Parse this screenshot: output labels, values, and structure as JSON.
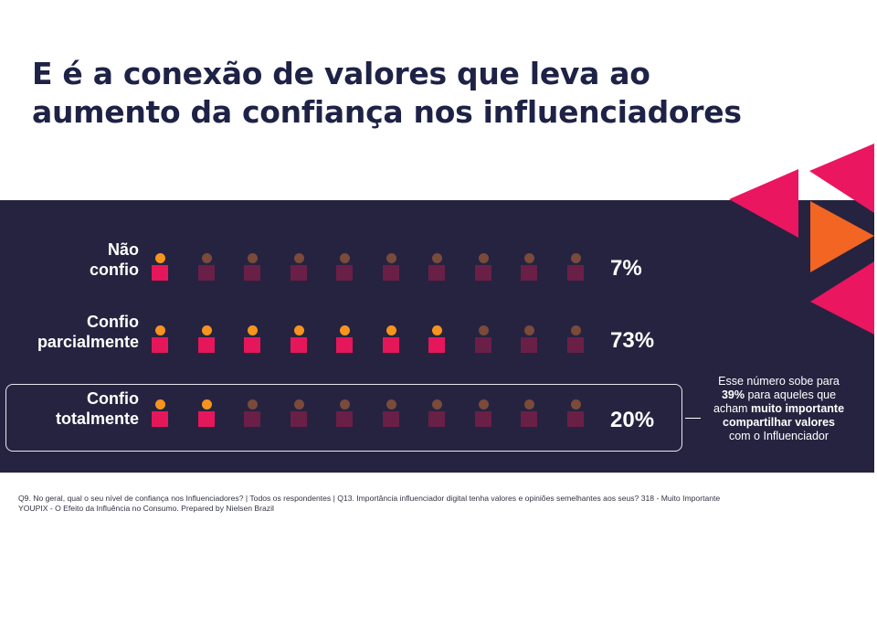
{
  "title": {
    "line1": "E é a conexão de valores que leva ao",
    "line2": "aumento da confiança nos influenciadores"
  },
  "chart_data": {
    "type": "pictograph",
    "icons_per_row": 10,
    "rows": [
      {
        "label_line1": "Não",
        "label_line2": "confio",
        "value_label": "7%",
        "value": 7,
        "highlighted_icons": 1,
        "boxed": false
      },
      {
        "label_line1": "Confio",
        "label_line2": "parcialmente",
        "value_label": "73%",
        "value": 73,
        "highlighted_icons": 7,
        "boxed": false
      },
      {
        "label_line1": "Confio",
        "label_line2": "totalmente",
        "value_label": "20%",
        "value": 20,
        "highlighted_icons": 2,
        "boxed": true
      }
    ],
    "colors": {
      "active_head": "#f7941d",
      "active_body": "#e5175a",
      "inactive_head": "#7a4a3a",
      "inactive_body": "#6a1f47"
    }
  },
  "annotation": {
    "part1": "Esse número sobe para",
    "part2_bold": "39%",
    "part3": " para aqueles que",
    "part4": "acham ",
    "part5_bold": "muito importante",
    "part6_bold": "compartilhar valores",
    "part7": "com o Influenciador"
  },
  "footnote": {
    "line1": "Q9. No geral, qual o seu nível de confiança nos Influenciadores? | Todos os respondentes | Q13. Importância influenciador digital tenha valores e opiniões semelhantes aos seus? 318 - Muito Importante",
    "line2": "YOUPIX - O Efeito da Influência no Consumo.  Prepared by Nielsen Brazil"
  },
  "colors": {
    "panel": "#262340",
    "title": "#1e2246",
    "deco_pink": "#ea1660",
    "deco_orange": "#f26522"
  }
}
